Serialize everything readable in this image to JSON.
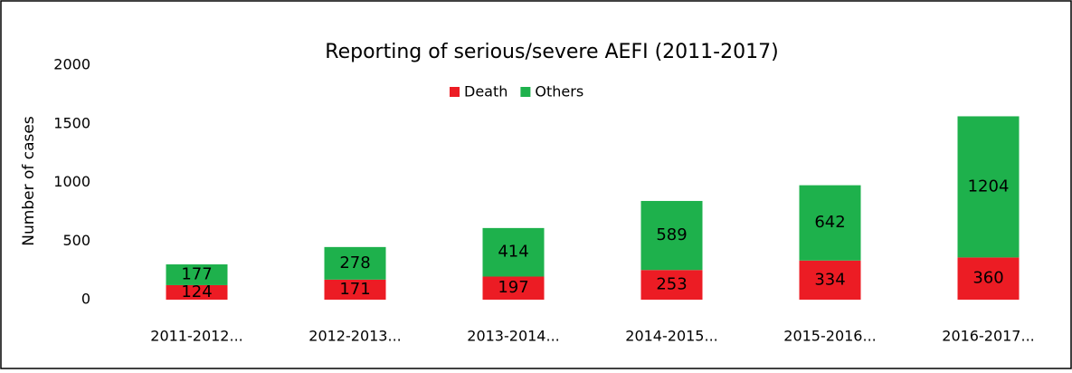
{
  "chart_data": {
    "type": "stacked_bar",
    "title": "Reporting of serious/severe AEFI (2011-2017)",
    "y_label": "Number of cases",
    "categories": [
      "2011-2012...",
      "2012-2013...",
      "2013-2014...",
      "2014-2015...",
      "2015-2016...",
      "2016-2017..."
    ],
    "series": [
      {
        "name": "Death",
        "color": "#ec1c24",
        "values": [
          124,
          171,
          197,
          253,
          334,
          360
        ]
      },
      {
        "name": "Others",
        "color": "#1eb14c",
        "values": [
          177,
          278,
          414,
          589,
          642,
          1204
        ]
      }
    ],
    "ylim": [
      0,
      2000
    ],
    "yticks": [
      0,
      500,
      1000,
      1500,
      2000
    ],
    "grid": false,
    "legend": "top"
  }
}
